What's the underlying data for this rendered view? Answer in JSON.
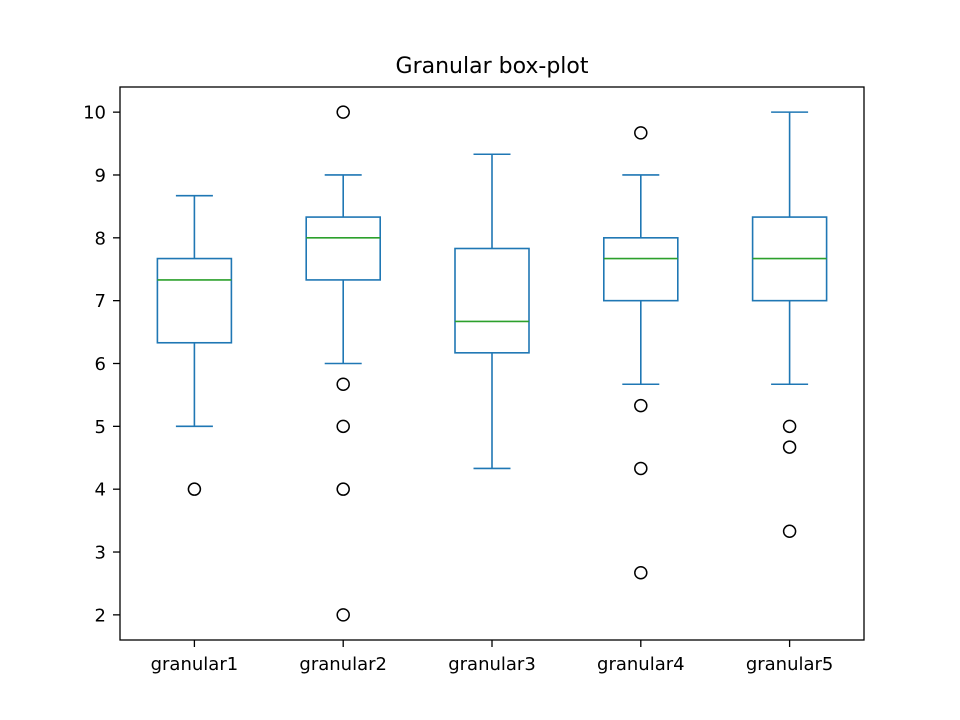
{
  "chart_data": {
    "type": "box",
    "title": "Granular box-plot",
    "xlabel": "",
    "ylabel": "",
    "categories": [
      "granular1",
      "granular2",
      "granular3",
      "granular4",
      "granular5"
    ],
    "ylim": [
      1.6,
      10.4
    ],
    "yticks": [
      2,
      3,
      4,
      5,
      6,
      7,
      8,
      9,
      10
    ],
    "grid": false,
    "colors": {
      "box": "#1f77b4",
      "median": "#2ca02c",
      "flier": "#000000",
      "axes": "#000000"
    },
    "boxes": [
      {
        "category": "granular1",
        "whisker_low": 5.0,
        "q1": 6.33,
        "median": 7.33,
        "q3": 7.67,
        "whisker_high": 8.67,
        "fliers": [
          4.0
        ]
      },
      {
        "category": "granular2",
        "whisker_low": 6.0,
        "q1": 7.33,
        "median": 8.0,
        "q3": 8.33,
        "whisker_high": 9.0,
        "fliers": [
          10.0,
          5.67,
          5.0,
          4.0,
          2.0
        ]
      },
      {
        "category": "granular3",
        "whisker_low": 4.33,
        "q1": 6.17,
        "median": 6.67,
        "q3": 7.83,
        "whisker_high": 9.33,
        "fliers": []
      },
      {
        "category": "granular4",
        "whisker_low": 5.67,
        "q1": 7.0,
        "median": 7.67,
        "q3": 8.0,
        "whisker_high": 9.0,
        "fliers": [
          9.67,
          5.33,
          4.33,
          2.67
        ]
      },
      {
        "category": "granular5",
        "whisker_low": 5.67,
        "q1": 7.0,
        "median": 7.67,
        "q3": 8.33,
        "whisker_high": 10.0,
        "fliers": [
          5.0,
          4.67,
          3.33
        ]
      }
    ]
  }
}
